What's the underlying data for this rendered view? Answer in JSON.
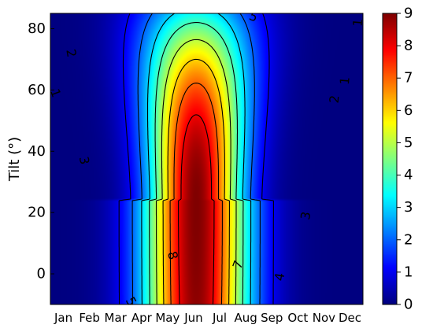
{
  "chart_data": {
    "type": "heatmap",
    "title": "",
    "xlabel": "",
    "ylabel": "Tilt (°)",
    "x_categories": [
      "Jan",
      "Feb",
      "Mar",
      "Apr",
      "May",
      "Jun",
      "Jul",
      "Aug",
      "Sep",
      "Oct",
      "Nov",
      "Dec"
    ],
    "x_range": [
      0,
      12
    ],
    "ylim": [
      -10,
      85
    ],
    "y_ticks": [
      0,
      20,
      40,
      60,
      80
    ],
    "colorbar": {
      "colormap": "jet",
      "range": [
        0,
        9
      ],
      "ticks": [
        0,
        1,
        2,
        3,
        4,
        5,
        6,
        7,
        8,
        9
      ]
    },
    "contour_levels": [
      1,
      2,
      3,
      4,
      5,
      6,
      7,
      8
    ],
    "contour_color": "#000000",
    "field_model": {
      "center_month": 5.6,
      "peak_value": 9.0,
      "peak_tilt": 24,
      "notes_hidden": false
    },
    "contour_labels": [
      {
        "text": "1",
        "month": 0.2,
        "tilt": 59,
        "angle": 70
      },
      {
        "text": "2",
        "month": 0.8,
        "tilt": 72,
        "angle": 80
      },
      {
        "text": "3",
        "month": 1.3,
        "tilt": 37,
        "angle": 80
      },
      {
        "text": "4",
        "month": 2.9,
        "tilt": -12,
        "angle": 60
      },
      {
        "text": "5",
        "month": 3.1,
        "tilt": -9,
        "angle": 60
      },
      {
        "text": "6",
        "month": 3.8,
        "tilt": -16,
        "angle": 60
      },
      {
        "text": "8",
        "month": 4.7,
        "tilt": 6,
        "angle": 75
      },
      {
        "text": "7",
        "month": 7.2,
        "tilt": 3,
        "angle": -70
      },
      {
        "text": "5",
        "month": 7.8,
        "tilt": -18,
        "angle": -80
      },
      {
        "text": "4",
        "month": 8.8,
        "tilt": -1,
        "angle": -80
      },
      {
        "text": "3",
        "month": 9.8,
        "tilt": 19,
        "angle": -80
      },
      {
        "text": "2",
        "month": 10.9,
        "tilt": 57,
        "angle": -85
      },
      {
        "text": "1",
        "month": 11.3,
        "tilt": 63,
        "angle": -85
      },
      {
        "text": "1",
        "month": 11.8,
        "tilt": 82,
        "angle": -85
      },
      {
        "text": "5",
        "month": 7.8,
        "tilt": 84,
        "angle": 20
      }
    ]
  }
}
